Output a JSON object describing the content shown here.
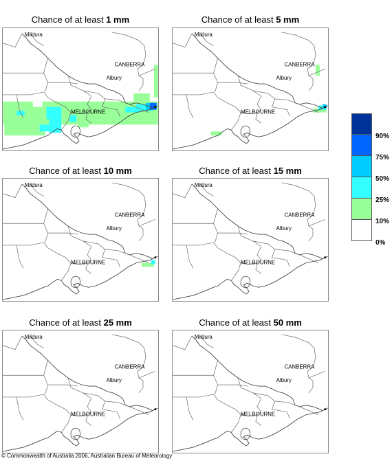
{
  "title_prefix": "Chance of at least",
  "panels": [
    {
      "amount": "1 mm"
    },
    {
      "amount": "5 mm"
    },
    {
      "amount": "10 mm"
    },
    {
      "amount": "15 mm"
    },
    {
      "amount": "25 mm"
    },
    {
      "amount": "50 mm"
    }
  ],
  "places": {
    "mildura": "Mildura",
    "canberra": "CANBERRA",
    "albury": "Albury",
    "melbourne": "MELBOURNE"
  },
  "legend": {
    "labels": [
      "90%",
      "75%",
      "50%",
      "25%",
      "10%",
      "0%"
    ],
    "colors": [
      "#003399",
      "#0066ff",
      "#00ccff",
      "#33ffff",
      "#99ff99",
      "#ffffff"
    ]
  },
  "credit": "© Commonwealth of Australia 2006, Australian Bureau of Meteorology"
}
